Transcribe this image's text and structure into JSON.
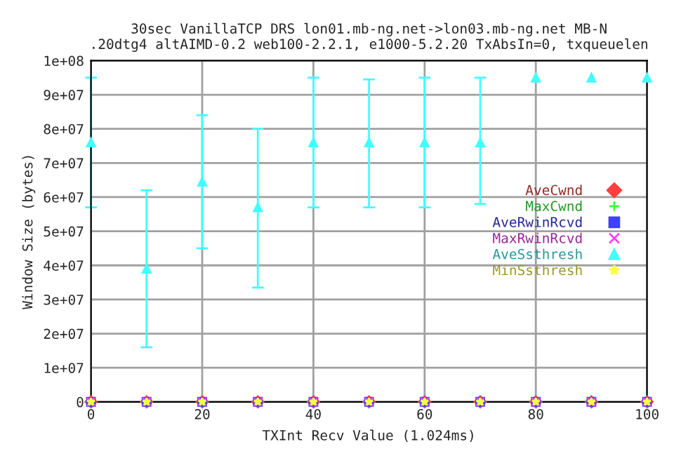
{
  "chart_data": {
    "type": "scatter",
    "title": "30sec VanillaTCP DRS lon01.mb-ng.net->lon03.mb-ng.net MB-N\n.20dtg4 altAIMD-0.2 web100-2.2.1, e1000-5.2.20 TxAbsIn=0, txqueuelen",
    "xlabel": "TXInt Recv Value (1.024ms)",
    "ylabel": "Window Size (bytes)",
    "x": [
      0,
      10,
      20,
      30,
      40,
      50,
      60,
      70,
      80,
      90,
      100
    ],
    "series": [
      {
        "name": "AveCwnd",
        "color": "#ff4040",
        "marker": "diamond",
        "values": [
          0,
          0,
          0,
          0,
          0,
          0,
          0,
          0,
          0,
          0,
          0
        ]
      },
      {
        "name": "MaxCwnd",
        "color": "#40ff40",
        "marker": "plus",
        "values": [
          null,
          null,
          null,
          null,
          null,
          null,
          null,
          null,
          null,
          null,
          null
        ]
      },
      {
        "name": "AveRwinRcvd",
        "color": "#4040ff",
        "marker": "square",
        "values": [
          0,
          0,
          0,
          0,
          0,
          0,
          0,
          0,
          0,
          0,
          0
        ]
      },
      {
        "name": "MaxRwinRcvd",
        "color": "#ff40ff",
        "marker": "cross",
        "values": [
          0,
          0,
          0,
          0,
          0,
          0,
          0,
          0,
          0,
          0,
          0
        ]
      },
      {
        "name": "AveSsthresh",
        "color": "#40ffff",
        "marker": "triangle",
        "values": [
          76000000,
          39000000,
          64500000,
          57000000,
          76000000,
          76000000,
          76000000,
          76000000,
          95000000,
          95000000,
          95000000
        ],
        "errors": [
          [
            57000000,
            95000000
          ],
          [
            16000000,
            62000000
          ],
          [
            45000000,
            84000000
          ],
          [
            33500000,
            80000000
          ],
          [
            57000000,
            95000000
          ],
          [
            57000000,
            94500000
          ],
          [
            57000000,
            95000000
          ],
          [
            58000000,
            95000000
          ],
          null,
          null,
          null
        ]
      },
      {
        "name": "MinSsthresh",
        "color": "#ffff40",
        "marker": "star",
        "values": [
          0,
          0,
          0,
          0,
          0,
          0,
          0,
          0,
          0,
          0,
          0
        ]
      }
    ],
    "xlim": [
      0,
      100
    ],
    "xticks": [
      0,
      20,
      40,
      60,
      80,
      100
    ],
    "ylim": [
      0,
      100000000
    ],
    "yticks": [
      0,
      {
        "value": 10000000,
        "label": "1e+07"
      },
      {
        "value": 20000000,
        "label": "2e+07"
      },
      {
        "value": 30000000,
        "label": "3e+07"
      },
      {
        "value": 40000000,
        "label": "4e+07"
      },
      {
        "value": 50000000,
        "label": "5e+07"
      },
      {
        "value": 60000000,
        "label": "6e+07"
      },
      {
        "value": 70000000,
        "label": "7e+07"
      },
      {
        "value": 80000000,
        "label": "8e+07"
      },
      {
        "value": 90000000,
        "label": "9e+07"
      },
      {
        "value": 100000000,
        "label": "1e+08"
      }
    ],
    "grid": true,
    "legend": "right"
  }
}
